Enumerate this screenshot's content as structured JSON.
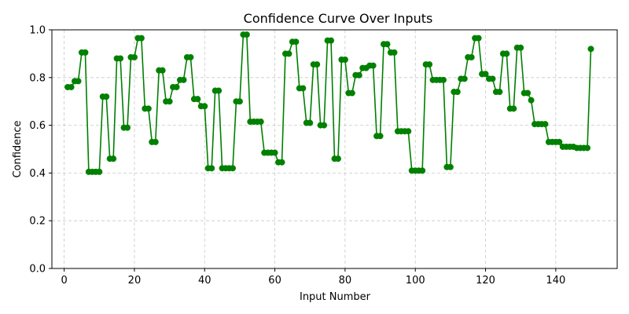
{
  "chart_data": {
    "type": "line",
    "title": "Confidence Curve Over Inputs",
    "xlabel": "Input Number",
    "ylabel": "Confidence",
    "xlim": [
      -3.5,
      157.5
    ],
    "ylim": [
      0.0,
      1.0
    ],
    "xticks": [
      0,
      20,
      40,
      60,
      80,
      100,
      120,
      140
    ],
    "yticks": [
      0.0,
      0.2,
      0.4,
      0.6,
      0.8,
      1.0
    ],
    "grid": true,
    "color": "#008000",
    "x": [
      1,
      2,
      3,
      4,
      5,
      6,
      7,
      8,
      9,
      10,
      11,
      12,
      13,
      14,
      15,
      16,
      17,
      18,
      19,
      20,
      21,
      22,
      23,
      24,
      25,
      26,
      27,
      28,
      29,
      30,
      31,
      32,
      33,
      34,
      35,
      36,
      37,
      38,
      39,
      40,
      41,
      42,
      43,
      44,
      45,
      46,
      47,
      48,
      49,
      50,
      51,
      52,
      53,
      54,
      55,
      56,
      57,
      58,
      59,
      60,
      61,
      62,
      63,
      64,
      65,
      66,
      67,
      68,
      69,
      70,
      71,
      72,
      73,
      74,
      75,
      76,
      77,
      78,
      79,
      80,
      81,
      82,
      83,
      84,
      85,
      86,
      87,
      88,
      89,
      90,
      91,
      92,
      93,
      94,
      95,
      96,
      97,
      98,
      99,
      100,
      101,
      102,
      103,
      104,
      105,
      106,
      107,
      108,
      109,
      110,
      111,
      112,
      113,
      114,
      115,
      116,
      117,
      118,
      119,
      120,
      121,
      122,
      123,
      124,
      125,
      126,
      127,
      128,
      129,
      130,
      131,
      132,
      133,
      134,
      135,
      136,
      137,
      138,
      139,
      140,
      141,
      142,
      143,
      144,
      145,
      146,
      147,
      148,
      149,
      150
    ],
    "y": [
      0.76,
      0.76,
      0.785,
      0.785,
      0.905,
      0.905,
      0.405,
      0.405,
      0.405,
      0.405,
      0.72,
      0.72,
      0.46,
      0.46,
      0.88,
      0.88,
      0.59,
      0.59,
      0.885,
      0.885,
      0.965,
      0.965,
      0.67,
      0.67,
      0.53,
      0.53,
      0.83,
      0.83,
      0.7,
      0.7,
      0.76,
      0.76,
      0.79,
      0.79,
      0.885,
      0.885,
      0.71,
      0.71,
      0.68,
      0.68,
      0.42,
      0.42,
      0.745,
      0.745,
      0.42,
      0.42,
      0.42,
      0.42,
      0.7,
      0.7,
      0.98,
      0.98,
      0.615,
      0.615,
      0.615,
      0.615,
      0.485,
      0.485,
      0.485,
      0.485,
      0.445,
      0.445,
      0.9,
      0.9,
      0.95,
      0.95,
      0.755,
      0.755,
      0.61,
      0.61,
      0.855,
      0.855,
      0.6,
      0.6,
      0.955,
      0.955,
      0.46,
      0.46,
      0.875,
      0.875,
      0.735,
      0.735,
      0.81,
      0.81,
      0.84,
      0.84,
      0.85,
      0.85,
      0.555,
      0.555,
      0.94,
      0.94,
      0.905,
      0.905,
      0.575,
      0.575,
      0.575,
      0.575,
      0.41,
      0.41,
      0.41,
      0.41,
      0.855,
      0.855,
      0.79,
      0.79,
      0.79,
      0.79,
      0.425,
      0.425,
      0.74,
      0.74,
      0.795,
      0.795,
      0.885,
      0.885,
      0.965,
      0.965,
      0.815,
      0.815,
      0.795,
      0.795,
      0.74,
      0.74,
      0.9,
      0.9,
      0.67,
      0.67,
      0.925,
      0.925,
      0.735,
      0.735,
      0.705,
      0.605,
      0.605,
      0.605,
      0.605,
      0.53,
      0.53,
      0.53,
      0.53,
      0.51,
      0.51,
      0.51,
      0.51,
      0.505,
      0.505,
      0.505,
      0.505,
      0.92
    ]
  }
}
